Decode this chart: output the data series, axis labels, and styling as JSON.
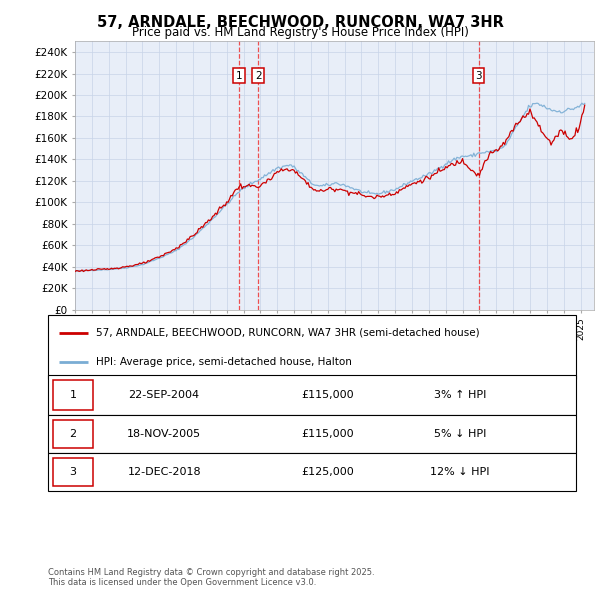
{
  "title": "57, ARNDALE, BEECHWOOD, RUNCORN, WA7 3HR",
  "subtitle": "Price paid vs. HM Land Registry's House Price Index (HPI)",
  "legend_line1": "57, ARNDALE, BEECHWOOD, RUNCORN, WA7 3HR (semi-detached house)",
  "legend_line2": "HPI: Average price, semi-detached house, Halton",
  "footer": "Contains HM Land Registry data © Crown copyright and database right 2025.\nThis data is licensed under the Open Government Licence v3.0.",
  "xlim_start": 1995.0,
  "xlim_end": 2025.8,
  "ylim_min": 0,
  "ylim_max": 250000,
  "ytick_values": [
    0,
    20000,
    40000,
    60000,
    80000,
    100000,
    120000,
    140000,
    160000,
    180000,
    200000,
    220000,
    240000
  ],
  "ytick_labels": [
    "£0",
    "£20K",
    "£40K",
    "£60K",
    "£80K",
    "£100K",
    "£120K",
    "£140K",
    "£160K",
    "£180K",
    "£200K",
    "£220K",
    "£240K"
  ],
  "transactions": [
    {
      "label": "1",
      "date": "22-SEP-2004",
      "price": 115000,
      "year": 2004.73,
      "hpi_pct": "3% ↑ HPI"
    },
    {
      "label": "2",
      "date": "18-NOV-2005",
      "price": 115000,
      "year": 2005.88,
      "hpi_pct": "5% ↓ HPI"
    },
    {
      "label": "3",
      "date": "12-DEC-2018",
      "price": 125000,
      "year": 2018.95,
      "hpi_pct": "12% ↓ HPI"
    }
  ],
  "hpi_color": "#7aadd4",
  "price_color": "#cc0000",
  "vline_color": "#ee3333",
  "plot_bg": "#e8eef8",
  "box_color": "#cc0000",
  "grid_color": "#c8d4e8"
}
